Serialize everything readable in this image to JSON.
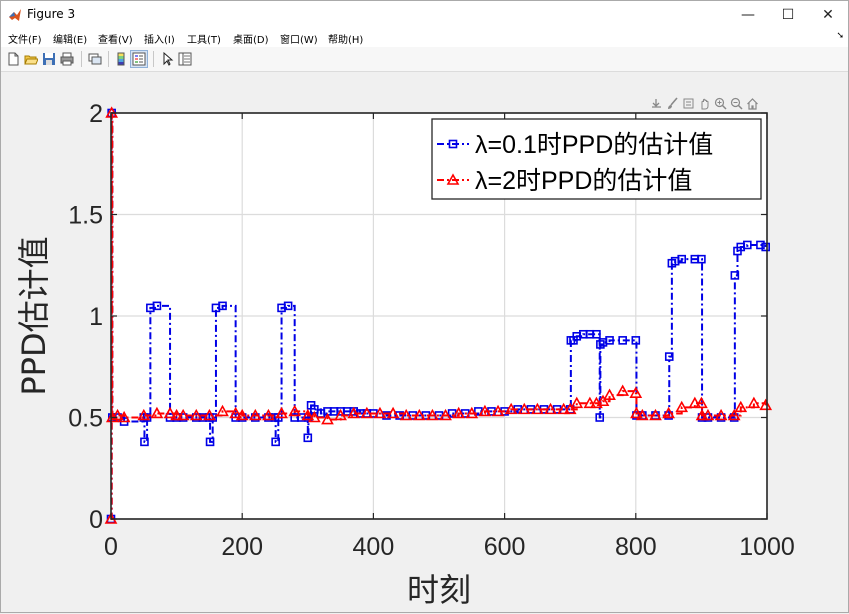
{
  "window": {
    "title": "Figure 3",
    "minimize_glyph": "—",
    "maximize_glyph": "☐",
    "close_glyph": "✕"
  },
  "menu": [
    {
      "label": "文件(F)"
    },
    {
      "label": "编辑(E)"
    },
    {
      "label": "查看(V)"
    },
    {
      "label": "插入(I)"
    },
    {
      "label": "工具(T)"
    },
    {
      "label": "桌面(D)"
    },
    {
      "label": "窗口(W)"
    },
    {
      "label": "帮助(H)"
    }
  ],
  "menu_overflow_glyph": "➘",
  "toolbar": [
    "new-figure-icon",
    "open-file-icon",
    "save-icon",
    "print-icon",
    "link-plot-icon",
    "colorbar-icon",
    "legend-icon",
    "edit-plot-arrow-icon",
    "property-inspector-icon"
  ],
  "axes_toolbar": [
    "export-icon",
    "brush-icon",
    "data-tips-icon",
    "pan-icon",
    "zoom-in-icon",
    "zoom-out-icon",
    "home-icon"
  ],
  "colors": {
    "series1": "#0000e6",
    "series2": "#ff0000",
    "grid": "#dcdcdc",
    "axes_bg": "#ffffff",
    "figure_bg": "#f0f0f0"
  },
  "chart_data": {
    "type": "line",
    "xlabel": "时刻",
    "ylabel": "PPD估计值",
    "xlim": [
      0,
      1000
    ],
    "ylim": [
      0,
      2
    ],
    "xticks": [
      0,
      200,
      400,
      600,
      800,
      1000
    ],
    "yticks": [
      0,
      0.5,
      1,
      1.5,
      2
    ],
    "xtick_labels": [
      "0",
      "200",
      "400",
      "600",
      "800",
      "1000"
    ],
    "ytick_labels": [
      "0",
      "0.5",
      "1",
      "1.5",
      "2"
    ],
    "grid": true,
    "legend_position": "top-right",
    "series": [
      {
        "name": "λ=0.1时PPD的估计值",
        "color": "#0000e6",
        "line_style": "dash-dot",
        "marker": "square",
        "x": [
          0,
          1,
          2,
          10,
          20,
          50,
          51,
          55,
          60,
          70,
          90,
          100,
          110,
          130,
          140,
          150,
          151,
          155,
          160,
          170,
          190,
          200,
          220,
          240,
          250,
          251,
          255,
          260,
          270,
          280,
          290,
          300,
          301,
          305,
          310,
          320,
          330,
          340,
          350,
          360,
          370,
          380,
          390,
          400,
          420,
          440,
          460,
          480,
          500,
          520,
          540,
          560,
          580,
          600,
          620,
          640,
          660,
          680,
          700,
          701,
          705,
          710,
          720,
          730,
          740,
          745,
          746,
          750,
          760,
          780,
          800,
          801,
          810,
          830,
          850,
          851,
          855,
          860,
          870,
          890,
          900,
          901,
          910,
          930,
          950,
          951,
          955,
          960,
          970,
          990,
          998
        ],
        "y": [
          0,
          2,
          0.5,
          0.5,
          0.48,
          0.5,
          0.38,
          0.5,
          1.04,
          1.05,
          0.5,
          0.5,
          0.5,
          0.5,
          0.5,
          0.5,
          0.38,
          0.5,
          1.04,
          1.05,
          0.5,
          0.5,
          0.5,
          0.5,
          0.5,
          0.38,
          0.5,
          1.04,
          1.05,
          0.5,
          0.5,
          0.4,
          0.5,
          0.56,
          0.54,
          0.52,
          0.53,
          0.53,
          0.53,
          0.53,
          0.53,
          0.52,
          0.52,
          0.52,
          0.51,
          0.51,
          0.51,
          0.51,
          0.51,
          0.52,
          0.52,
          0.53,
          0.53,
          0.53,
          0.54,
          0.54,
          0.54,
          0.54,
          0.54,
          0.88,
          0.88,
          0.9,
          0.91,
          0.91,
          0.91,
          0.5,
          0.86,
          0.87,
          0.88,
          0.88,
          0.88,
          0.51,
          0.51,
          0.51,
          0.51,
          0.8,
          1.26,
          1.27,
          1.28,
          1.28,
          1.28,
          0.5,
          0.5,
          0.5,
          0.5,
          1.2,
          1.32,
          1.34,
          1.35,
          1.35,
          1.34
        ]
      },
      {
        "name": "λ=2时PPD的估计值",
        "color": "#ff0000",
        "line_style": "dash-dot",
        "marker": "triangle",
        "x": [
          0,
          1,
          2,
          10,
          20,
          50,
          70,
          90,
          100,
          110,
          130,
          150,
          170,
          190,
          200,
          220,
          240,
          260,
          280,
          300,
          310,
          330,
          350,
          370,
          390,
          410,
          430,
          450,
          470,
          490,
          510,
          530,
          550,
          570,
          590,
          610,
          630,
          650,
          670,
          690,
          700,
          710,
          730,
          740,
          750,
          760,
          780,
          800,
          801,
          810,
          830,
          850,
          870,
          890,
          900,
          901,
          910,
          930,
          950,
          960,
          980,
          998
        ],
        "y": [
          0,
          2,
          0.5,
          0.51,
          0.5,
          0.51,
          0.52,
          0.52,
          0.51,
          0.51,
          0.51,
          0.51,
          0.53,
          0.52,
          0.51,
          0.51,
          0.51,
          0.52,
          0.53,
          0.51,
          0.5,
          0.49,
          0.51,
          0.52,
          0.52,
          0.52,
          0.52,
          0.51,
          0.51,
          0.51,
          0.51,
          0.52,
          0.52,
          0.53,
          0.53,
          0.54,
          0.54,
          0.54,
          0.54,
          0.54,
          0.54,
          0.57,
          0.57,
          0.57,
          0.58,
          0.61,
          0.63,
          0.62,
          0.52,
          0.51,
          0.51,
          0.52,
          0.55,
          0.57,
          0.57,
          0.51,
          0.51,
          0.51,
          0.51,
          0.55,
          0.57,
          0.56
        ]
      }
    ]
  }
}
